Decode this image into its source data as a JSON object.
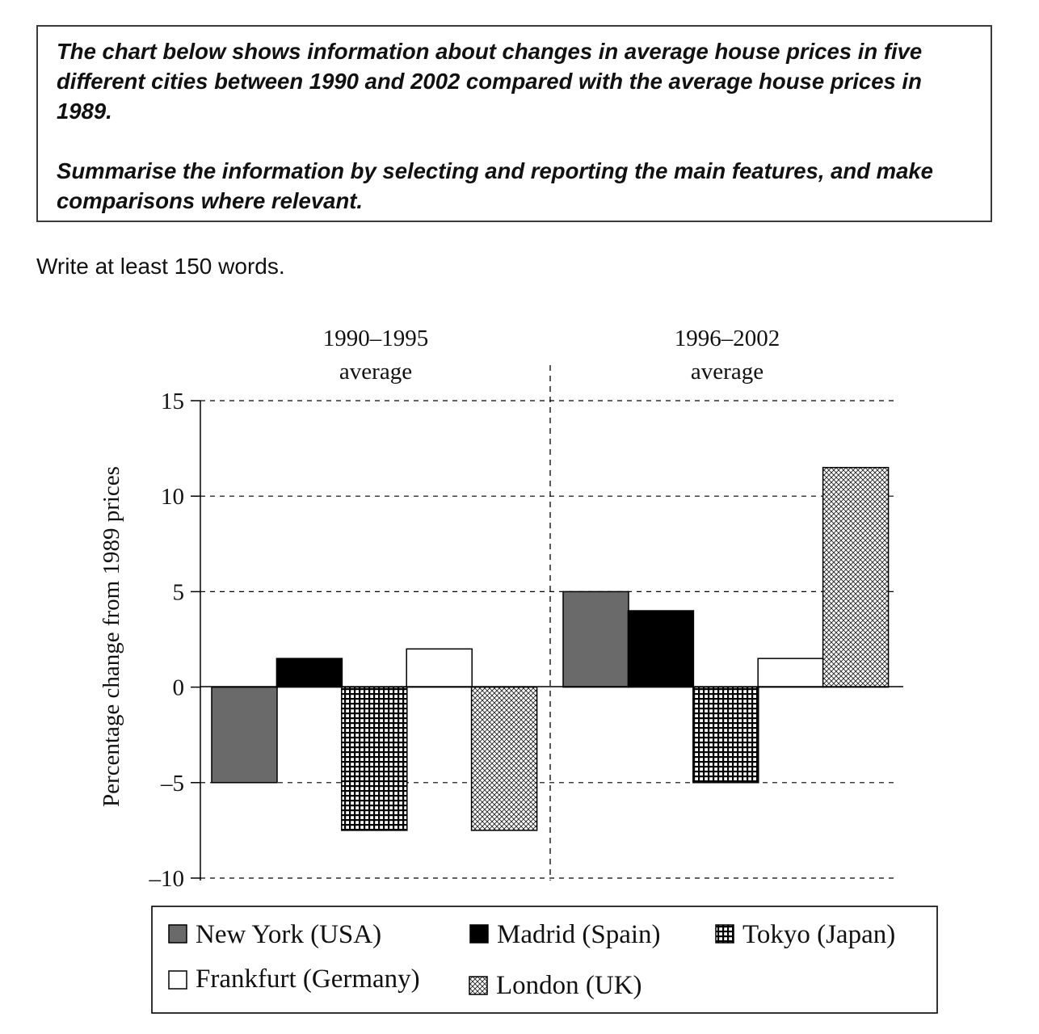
{
  "task": {
    "paragraph1": "The chart below shows information about changes in average house prices in five different cities between 1990 and 2002 compared with the average house prices in 1989.",
    "paragraph2": "Summarise the information by selecting and reporting the main features, and make comparisons where relevant."
  },
  "instruction": "Write at least 150 words.",
  "colors": {
    "text": "#111111",
    "border": "#3a3a3a",
    "new_york": "#6a6a6a",
    "madrid": "#000000",
    "frankfurt": "#ffffff"
  },
  "chart_data": {
    "type": "bar",
    "title": "",
    "ylabel": "Percentage change from 1989 prices",
    "xlabel": "",
    "ylim": [
      -10,
      15
    ],
    "yticks": [
      15,
      10,
      5,
      0,
      -5,
      -10
    ],
    "ytick_labels": [
      "15",
      "10",
      "5",
      "0",
      "–5",
      "–10"
    ],
    "grid": true,
    "groups": [
      {
        "line1": "1990–1995",
        "line2": "average"
      },
      {
        "line1": "1996–2002",
        "line2": "average"
      }
    ],
    "categories": [
      "1990–1995 average",
      "1996–2002 average"
    ],
    "series": [
      {
        "name": "New York (USA)",
        "values": [
          -5,
          5
        ],
        "pattern": "grey"
      },
      {
        "name": "Madrid (Spain)",
        "values": [
          1.5,
          4
        ],
        "pattern": "black"
      },
      {
        "name": "Tokyo (Japan)",
        "values": [
          -7.5,
          -5
        ],
        "pattern": "grid"
      },
      {
        "name": "Frankfurt (Germany)",
        "values": [
          2,
          1.5
        ],
        "pattern": "white"
      },
      {
        "name": "London (UK)",
        "values": [
          -7.5,
          11.5
        ],
        "pattern": "crosshatch"
      }
    ],
    "legend_position": "bottom"
  }
}
